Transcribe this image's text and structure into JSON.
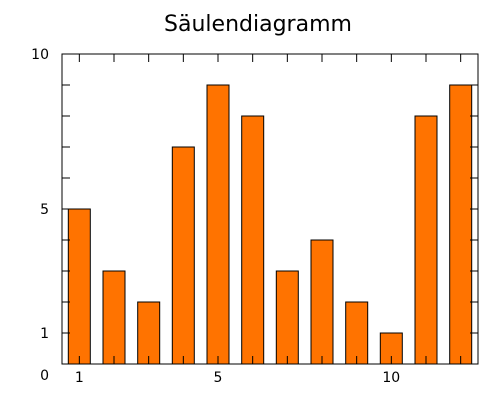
{
  "chart_data": {
    "type": "bar",
    "title": "Säulendiagramm",
    "xlabel": "",
    "ylabel": "",
    "x": [
      1,
      2,
      3,
      4,
      5,
      6,
      7,
      8,
      9,
      10,
      11,
      12
    ],
    "values": [
      5,
      3,
      2,
      7,
      9,
      8,
      3,
      4,
      2,
      1,
      8,
      9
    ],
    "ylim": [
      0,
      10
    ],
    "xlim": [
      0.5,
      12.5
    ],
    "y_tick_labels": [
      {
        "value": 0,
        "label": "0"
      },
      {
        "value": 1,
        "label": "1"
      },
      {
        "value": 5,
        "label": "5"
      },
      {
        "value": 10,
        "label": "10"
      }
    ],
    "y_minor_ticks": [
      0,
      1,
      2,
      3,
      4,
      5,
      6,
      7,
      8,
      9,
      10
    ],
    "x_tick_labels": [
      {
        "value": 1,
        "label": "1"
      },
      {
        "value": 5,
        "label": "5"
      },
      {
        "value": 10,
        "label": "10"
      }
    ],
    "bar_color": "#ff7300",
    "grid": false,
    "legend": "none"
  }
}
